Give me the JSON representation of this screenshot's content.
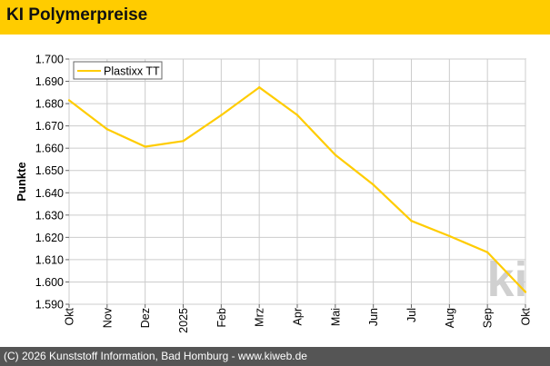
{
  "header": {
    "title": "KI Polymerpreise"
  },
  "footer": {
    "text": "(C) 2026 Kunststoff Information, Bad Homburg - www.kiweb.de"
  },
  "colors": {
    "brand_yellow": "#ffcc00",
    "series_line": "#ffcc00",
    "grid": "#cccccc",
    "footer_bg": "#555555",
    "watermark": "#d0d0d0"
  },
  "watermark": {
    "text": "ki"
  },
  "chart_data": {
    "type": "line",
    "xlabel": "",
    "ylabel": "Punkte",
    "categories": [
      "Okt",
      "Nov",
      "Dez",
      "2025",
      "Feb",
      "Mrz",
      "Apr",
      "Mai",
      "Jun",
      "Jul",
      "Aug",
      "Sep",
      "Okt"
    ],
    "y_ticks": [
      "1.590",
      "1.600",
      "1.610",
      "1.620",
      "1.630",
      "1.640",
      "1.650",
      "1.660",
      "1.670",
      "1.680",
      "1.690",
      "1.700"
    ],
    "ylim": [
      1590,
      1700
    ],
    "grid": true,
    "legend_position": "top-left",
    "series": [
      {
        "name": "Plastixx TT",
        "values": [
          1681.5,
          1668.5,
          1660.7,
          1663.2,
          1674.8,
          1687.3,
          1674.9,
          1657.0,
          1643.6,
          1627.4,
          1620.6,
          1613.3,
          1595.5
        ]
      }
    ]
  }
}
